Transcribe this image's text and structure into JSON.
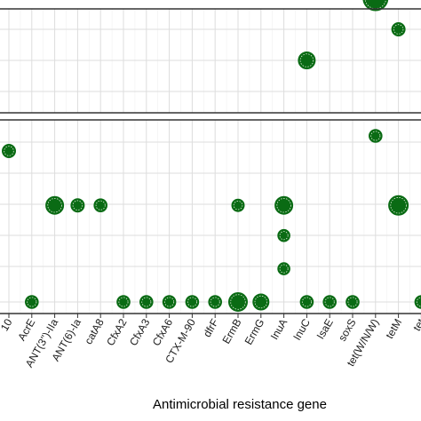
{
  "chart_data": {
    "type": "scatter",
    "title": "",
    "xlabel": "Antimicrobial resistance gene",
    "ylabel": "",
    "grid": true,
    "legend": "none",
    "categories": [
      "...10",
      "AcrE",
      "ANT(3'')-IIa",
      "ANT(6)-Ia",
      "catA8",
      "CfxA2",
      "CfxA3",
      "CfxA6",
      "CTX-M-90",
      "dfrF",
      "ErmB",
      "ErmG",
      "InuA",
      "InuC",
      "IsaE",
      "soxS",
      "tet(W/N/W)",
      "tetM",
      "tet..."
    ],
    "category_labels": [
      "10",
      "AcrE",
      "ANT(3'')-IIa",
      "ANT(6)-Ia",
      "catA8",
      "CfxA2",
      "CfxA3",
      "CfxA6",
      "CTX-M-90",
      "dfrF",
      "ErmB",
      "ErmG",
      "InuA",
      "InuC",
      "IsaE",
      "soxS",
      "tet(W/N/W)",
      "tetM",
      "tet"
    ],
    "panels": [
      {
        "name": "upper",
        "ylim": [
          0,
          4
        ],
        "points": [
          {
            "x": 13,
            "y": 1.0,
            "size": 0.55
          },
          {
            "x": 16,
            "y": 3.0,
            "size": 1.0
          },
          {
            "x": 17,
            "y": 2.0,
            "size": 0.35
          }
        ]
      },
      {
        "name": "lower",
        "ylim": [
          0,
          6.5
        ],
        "points": [
          {
            "x": 0,
            "y": 5.0,
            "size": 0.35
          },
          {
            "x": 1,
            "y": 0.0,
            "size": 0.33
          },
          {
            "x": 2,
            "y": 3.2,
            "size": 0.6
          },
          {
            "x": 3,
            "y": 3.2,
            "size": 0.35
          },
          {
            "x": 4,
            "y": 3.2,
            "size": 0.33
          },
          {
            "x": 5,
            "y": 0.0,
            "size": 0.33
          },
          {
            "x": 6,
            "y": 0.0,
            "size": 0.33
          },
          {
            "x": 7,
            "y": 0.0,
            "size": 0.33
          },
          {
            "x": 8,
            "y": 0.0,
            "size": 0.33
          },
          {
            "x": 9,
            "y": 0.0,
            "size": 0.33
          },
          {
            "x": 10,
            "y": 0.0,
            "size": 0.65
          },
          {
            "x": 10,
            "y": 3.2,
            "size": 0.3
          },
          {
            "x": 11,
            "y": 0.0,
            "size": 0.5
          },
          {
            "x": 12,
            "y": 3.2,
            "size": 0.6
          },
          {
            "x": 12,
            "y": 2.2,
            "size": 0.28
          },
          {
            "x": 12,
            "y": 1.1,
            "size": 0.28
          },
          {
            "x": 13,
            "y": 0.0,
            "size": 0.33
          },
          {
            "x": 14,
            "y": 0.0,
            "size": 0.33
          },
          {
            "x": 15,
            "y": 0.0,
            "size": 0.33
          },
          {
            "x": 16,
            "y": 5.5,
            "size": 0.33
          },
          {
            "x": 17,
            "y": 3.2,
            "size": 0.7
          },
          {
            "x": 18,
            "y": 0.0,
            "size": 0.33
          }
        ]
      }
    ]
  },
  "colors": {
    "point_fill": "#0a6b14",
    "point_edge": "#0a6b14",
    "point_inner_ring": "#d9ead3",
    "grid": "#dddddd",
    "panel_border": "#333333"
  }
}
